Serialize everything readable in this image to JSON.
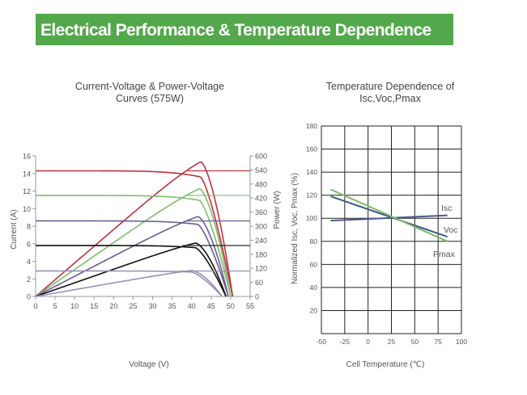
{
  "header": {
    "title": "Electrical Performance & Temperature Dependence"
  },
  "colors": {
    "header_bg": "#52a84a",
    "curve_1000": "#c0303c",
    "curve_800": "#7dbf6a",
    "curve_600": "#6b5b95",
    "curve_400": "#111111",
    "curve_200": "#9b8fb8",
    "isc": "#4a5a8a",
    "voc": "#3d5a80",
    "pmax": "#7fb86a"
  },
  "chart_data": [
    {
      "type": "line",
      "title": "Current-Voltage & Power-Voltage\nCurves (575W)",
      "xlabel": "Voltage (V)",
      "ylabel": "Current (A)",
      "y2label": "Power (W)",
      "xlim": [
        0,
        55
      ],
      "ylim": [
        0,
        16
      ],
      "y2lim": [
        0,
        600
      ],
      "xticks": [
        "0",
        "5",
        "10",
        "15",
        "20",
        "25",
        "30",
        "35",
        "40",
        "45",
        "50",
        "55"
      ],
      "yticks": [
        "0",
        "2",
        "4",
        "6",
        "8",
        "10",
        "12",
        "14",
        "16"
      ],
      "y2ticks": [
        "0",
        "60",
        "120",
        "180",
        "240",
        "300",
        "360",
        "420",
        "480",
        "540",
        "600"
      ],
      "grid": false,
      "series": [
        {
          "isc": 14.3,
          "voc": 50.5,
          "vmp": 42.3,
          "imp": 13.6,
          "pmax": 575,
          "color": "#c0303c"
        },
        {
          "isc": 11.5,
          "voc": 50.0,
          "vmp": 42.0,
          "imp": 10.95,
          "pmax": 460,
          "color": "#7dbf6a"
        },
        {
          "isc": 8.6,
          "voc": 49.4,
          "vmp": 41.6,
          "imp": 8.2,
          "pmax": 341,
          "color": "#6b5b95"
        },
        {
          "isc": 5.8,
          "voc": 48.8,
          "vmp": 41.0,
          "imp": 5.55,
          "pmax": 228,
          "color": "#111111"
        },
        {
          "isc": 2.9,
          "voc": 47.8,
          "vmp": 40.0,
          "imp": 2.78,
          "pmax": 111,
          "color": "#9b8fb8"
        }
      ]
    },
    {
      "type": "line",
      "title": "Temperature Dependence of\nIsc,Voc,Pmax",
      "xlabel": "Cell Temperature (℃)",
      "ylabel": "Normalized Isc, Voc, Pmax (%)",
      "xlim": [
        -50,
        100
      ],
      "ylim": [
        0,
        180
      ],
      "xticks": [
        "-50",
        "-25",
        "0",
        "25",
        "50",
        "75",
        "100"
      ],
      "yticks": [
        "20",
        "40",
        "60",
        "80",
        "100",
        "120",
        "140",
        "160",
        "180"
      ],
      "grid": true,
      "series": [
        {
          "name": "Isc",
          "x": [
            -40,
            85
          ],
          "y": [
            98,
            102.5
          ],
          "color": "#4a5a8a"
        },
        {
          "name": "Voc",
          "x": [
            -40,
            85
          ],
          "y": [
            119,
            84
          ],
          "color": "#3d5a80"
        },
        {
          "name": "Pmax",
          "x": [
            -40,
            85
          ],
          "y": [
            125,
            80
          ],
          "color": "#7fb86a"
        }
      ]
    }
  ]
}
